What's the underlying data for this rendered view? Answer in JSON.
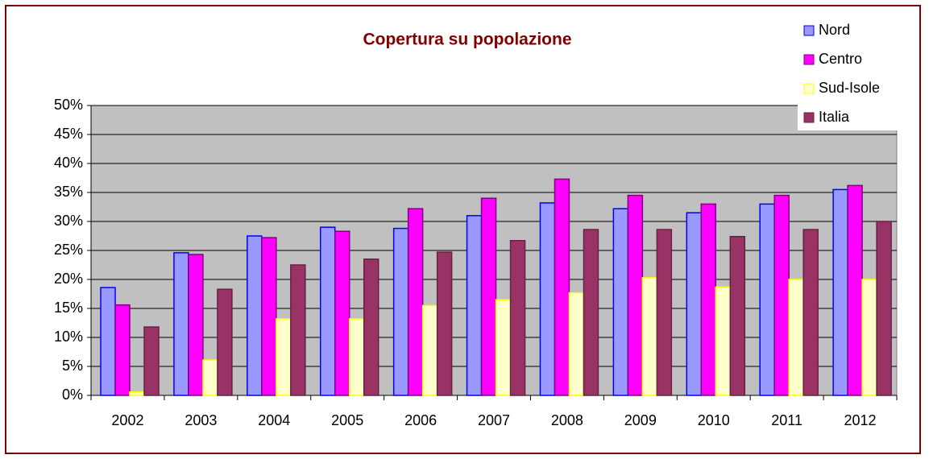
{
  "chart_data": {
    "type": "bar",
    "title": "Copertura su popolazione",
    "categories": [
      "2002",
      "2003",
      "2004",
      "2005",
      "2006",
      "2007",
      "2008",
      "2009",
      "2010",
      "2011",
      "2012"
    ],
    "series": [
      {
        "name": "Nord",
        "color": "#9999ff",
        "stroke": "#0000ff",
        "values": [
          18.6,
          24.6,
          27.5,
          29.0,
          28.8,
          31.0,
          33.2,
          32.2,
          31.5,
          33.0,
          35.5
        ]
      },
      {
        "name": "Centro",
        "color": "#ff00ff",
        "stroke": "#800080",
        "values": [
          15.6,
          24.3,
          27.2,
          28.3,
          32.2,
          34.0,
          37.3,
          34.5,
          33.0,
          34.5,
          36.2
        ]
      },
      {
        "name": "Sud-Isole",
        "color": "#ffffcc",
        "stroke": "#ffff00",
        "values": [
          0.6,
          6.1,
          13.2,
          13.2,
          15.5,
          16.5,
          17.7,
          20.3,
          18.7,
          20.0,
          20.0
        ]
      },
      {
        "name": "Italia",
        "color": "#993366",
        "stroke": "#662244",
        "values": [
          11.8,
          18.3,
          22.5,
          23.5,
          24.7,
          26.7,
          28.6,
          28.6,
          27.4,
          28.6,
          30.0
        ]
      }
    ],
    "ylim": [
      0,
      50
    ],
    "yticks": [
      {
        "value": 0,
        "label": "0%"
      },
      {
        "value": 5,
        "label": "5%"
      },
      {
        "value": 10,
        "label": "10%"
      },
      {
        "value": 15,
        "label": "15%"
      },
      {
        "value": 20,
        "label": "20%"
      },
      {
        "value": 25,
        "label": "25%"
      },
      {
        "value": 30,
        "label": "30%"
      },
      {
        "value": 35,
        "label": "35%"
      },
      {
        "value": 40,
        "label": "40%"
      },
      {
        "value": 45,
        "label": "45%"
      },
      {
        "value": 50,
        "label": "50%"
      }
    ],
    "grid": true,
    "legend": "top-right"
  }
}
